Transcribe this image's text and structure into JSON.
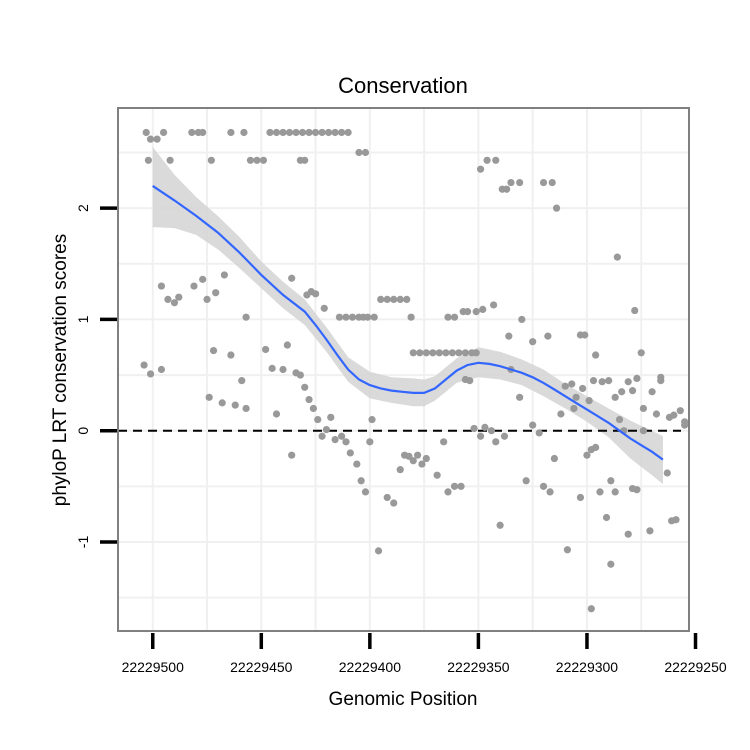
{
  "chart_data": {
    "type": "scatter",
    "title": "Conservation",
    "xlabel": "Genomic Position",
    "ylabel": "phyloP LRT conservation scores",
    "x_reversed": true,
    "xlim": [
      22229516,
      22229253
    ],
    "ylim": [
      -1.8,
      2.9
    ],
    "x_ticks": [
      {
        "value": 22229500,
        "label": "22229500"
      },
      {
        "value": 22229450,
        "label": "22229450"
      },
      {
        "value": 22229400,
        "label": "22229400"
      },
      {
        "value": 22229350,
        "label": "22229350"
      },
      {
        "value": 22229300,
        "label": "22229300"
      },
      {
        "value": 22229250,
        "label": "22229250"
      }
    ],
    "y_ticks": [
      {
        "value": -1,
        "label": "-1"
      },
      {
        "value": 0,
        "label": "0"
      },
      {
        "value": 1,
        "label": "1"
      },
      {
        "value": 2,
        "label": "2"
      }
    ],
    "grid": true,
    "reference_line": {
      "y": 0,
      "style": "dashed"
    },
    "colors": {
      "points": "#999999",
      "smooth": "#3366ff",
      "band": "#d3d3d3",
      "grid": "#f0f0f0",
      "border": "#808080"
    },
    "points": [
      [
        22229503,
        2.68
      ],
      [
        22229495,
        2.68
      ],
      [
        22229482,
        2.68
      ],
      [
        22229479,
        2.68
      ],
      [
        22229477,
        2.68
      ],
      [
        22229464,
        2.68
      ],
      [
        22229458,
        2.68
      ],
      [
        22229446,
        2.68
      ],
      [
        22229443,
        2.68
      ],
      [
        22229440,
        2.68
      ],
      [
        22229437,
        2.68
      ],
      [
        22229434,
        2.68
      ],
      [
        22229431,
        2.68
      ],
      [
        22229428,
        2.68
      ],
      [
        22229425,
        2.68
      ],
      [
        22229422,
        2.68
      ],
      [
        22229419,
        2.68
      ],
      [
        22229416,
        2.68
      ],
      [
        22229413,
        2.68
      ],
      [
        22229410,
        2.68
      ],
      [
        22229501,
        2.62
      ],
      [
        22229498,
        2.62
      ],
      [
        22229502,
        2.43
      ],
      [
        22229492,
        2.43
      ],
      [
        22229473,
        2.43
      ],
      [
        22229455,
        2.43
      ],
      [
        22229452,
        2.43
      ],
      [
        22229449,
        2.43
      ],
      [
        22229432,
        2.43
      ],
      [
        22229430,
        2.43
      ],
      [
        22229405,
        2.5
      ],
      [
        22229402,
        2.5
      ],
      [
        22229349,
        2.35
      ],
      [
        22229346,
        2.43
      ],
      [
        22229342,
        2.43
      ],
      [
        22229339,
        2.17
      ],
      [
        22229337,
        2.17
      ],
      [
        22229335,
        2.23
      ],
      [
        22229331,
        2.23
      ],
      [
        22229320,
        2.23
      ],
      [
        22229316,
        2.23
      ],
      [
        22229314,
        2.0
      ],
      [
        22229496,
        1.3
      ],
      [
        22229493,
        1.18
      ],
      [
        22229490,
        1.15
      ],
      [
        22229488,
        1.2
      ],
      [
        22229481,
        1.3
      ],
      [
        22229477,
        1.36
      ],
      [
        22229475,
        1.18
      ],
      [
        22229471,
        1.24
      ],
      [
        22229467,
        1.4
      ],
      [
        22229457,
        1.02
      ],
      [
        22229436,
        1.37
      ],
      [
        22229429,
        1.22
      ],
      [
        22229427,
        1.25
      ],
      [
        22229425,
        1.23
      ],
      [
        22229421,
        1.1
      ],
      [
        22229414,
        1.02
      ],
      [
        22229411,
        1.02
      ],
      [
        22229408,
        1.02
      ],
      [
        22229405,
        1.02
      ],
      [
        22229403,
        1.02
      ],
      [
        22229401,
        1.02
      ],
      [
        22229398,
        1.02
      ],
      [
        22229395,
        1.18
      ],
      [
        22229392,
        1.18
      ],
      [
        22229389,
        1.18
      ],
      [
        22229386,
        1.18
      ],
      [
        22229383,
        1.18
      ],
      [
        22229381,
        1.02
      ],
      [
        22229380,
        0.7
      ],
      [
        22229377,
        0.7
      ],
      [
        22229374,
        0.7
      ],
      [
        22229371,
        0.7
      ],
      [
        22229368,
        0.7
      ],
      [
        22229365,
        0.7
      ],
      [
        22229362,
        0.7
      ],
      [
        22229359,
        0.7
      ],
      [
        22229356,
        0.7
      ],
      [
        22229353,
        0.7
      ],
      [
        22229351,
        0.7
      ],
      [
        22229364,
        1.02
      ],
      [
        22229361,
        1.02
      ],
      [
        22229357,
        1.07
      ],
      [
        22229355,
        1.07
      ],
      [
        22229351,
        1.07
      ],
      [
        22229348,
        1.09
      ],
      [
        22229343,
        1.13
      ],
      [
        22229336,
        0.85
      ],
      [
        22229330,
        1.0
      ],
      [
        22229325,
        0.8
      ],
      [
        22229318,
        0.85
      ],
      [
        22229303,
        0.86
      ],
      [
        22229301,
        0.86
      ],
      [
        22229296,
        0.68
      ],
      [
        22229286,
        1.56
      ],
      [
        22229278,
        1.08
      ],
      [
        22229275,
        0.7
      ],
      [
        22229504,
        0.59
      ],
      [
        22229501,
        0.51
      ],
      [
        22229496,
        0.55
      ],
      [
        22229474,
        0.3
      ],
      [
        22229472,
        0.72
      ],
      [
        22229468,
        0.25
      ],
      [
        22229464,
        0.68
      ],
      [
        22229462,
        0.23
      ],
      [
        22229459,
        0.45
      ],
      [
        22229457,
        0.2
      ],
      [
        22229448,
        0.73
      ],
      [
        22229445,
        0.56
      ],
      [
        22229443,
        0.15
      ],
      [
        22229440,
        0.55
      ],
      [
        22229438,
        0.77
      ],
      [
        22229436,
        -0.22
      ],
      [
        22229434,
        0.52
      ],
      [
        22229432,
        0.5
      ],
      [
        22229430,
        0.39
      ],
      [
        22229428,
        0.28
      ],
      [
        22229426,
        0.2
      ],
      [
        22229424,
        0.1
      ],
      [
        22229422,
        -0.05
      ],
      [
        22229420,
        0.01
      ],
      [
        22229418,
        0.12
      ],
      [
        22229416,
        -0.08
      ],
      [
        22229413,
        -0.05
      ],
      [
        22229411,
        -0.1
      ],
      [
        22229409,
        -0.2
      ],
      [
        22229406,
        -0.3
      ],
      [
        22229404,
        -0.45
      ],
      [
        22229402,
        -0.55
      ],
      [
        22229400,
        -0.1
      ],
      [
        22229399,
        0.1
      ],
      [
        22229396,
        -1.08
      ],
      [
        22229392,
        -0.6
      ],
      [
        22229389,
        -0.65
      ],
      [
        22229386,
        -0.35
      ],
      [
        22229384,
        -0.22
      ],
      [
        22229382,
        -0.23
      ],
      [
        22229380,
        -0.27
      ],
      [
        22229378,
        -0.22
      ],
      [
        22229376,
        -0.3
      ],
      [
        22229374,
        -0.25
      ],
      [
        22229369,
        -0.4
      ],
      [
        22229366,
        -0.1
      ],
      [
        22229364,
        -0.55
      ],
      [
        22229361,
        -0.5
      ],
      [
        22229358,
        -0.5
      ],
      [
        22229356,
        0.46
      ],
      [
        22229354,
        0.45
      ],
      [
        22229352,
        0.02
      ],
      [
        22229349,
        -0.05
      ],
      [
        22229347,
        0.03
      ],
      [
        22229344,
        0.0
      ],
      [
        22229342,
        -0.1
      ],
      [
        22229340,
        -0.85
      ],
      [
        22229338,
        -0.05
      ],
      [
        22229335,
        0.55
      ],
      [
        22229331,
        0.3
      ],
      [
        22229328,
        -0.45
      ],
      [
        22229325,
        0.05
      ],
      [
        22229322,
        -0.02
      ],
      [
        22229320,
        -0.5
      ],
      [
        22229317,
        -0.55
      ],
      [
        22229315,
        -0.25
      ],
      [
        22229312,
        0.15
      ],
      [
        22229309,
        -1.07
      ],
      [
        22229306,
        0.2
      ],
      [
        22229303,
        -0.6
      ],
      [
        22229300,
        -0.22
      ],
      [
        22229298,
        -0.17
      ],
      [
        22229296,
        -0.15
      ],
      [
        22229294,
        -0.55
      ],
      [
        22229291,
        -0.78
      ],
      [
        22229289,
        -0.45
      ],
      [
        22229287,
        -0.55
      ],
      [
        22229285,
        0.1
      ],
      [
        22229283,
        0.0
      ],
      [
        22229281,
        -0.93
      ],
      [
        22229279,
        -0.52
      ],
      [
        22229277,
        -0.53
      ],
      [
        22229274,
        0.0
      ],
      [
        22229271,
        -0.9
      ],
      [
        22229268,
        0.15
      ],
      [
        22229266,
        0.48
      ],
      [
        22229263,
        -0.38
      ],
      [
        22229261,
        -0.81
      ],
      [
        22229259,
        -0.8
      ],
      [
        22229257,
        0.18
      ],
      [
        22229255,
        0.08
      ],
      [
        22229310,
        0.4
      ],
      [
        22229307,
        0.42
      ],
      [
        22229305,
        0.3
      ],
      [
        22229302,
        0.38
      ],
      [
        22229299,
        0.27
      ],
      [
        22229297,
        0.45
      ],
      [
        22229293,
        0.44
      ],
      [
        22229290,
        0.45
      ],
      [
        22229287,
        0.3
      ],
      [
        22229284,
        0.35
      ],
      [
        22229281,
        0.44
      ],
      [
        22229279,
        0.36
      ],
      [
        22229277,
        0.47
      ],
      [
        22229274,
        0.2
      ],
      [
        22229270,
        0.35
      ],
      [
        22229266,
        0.45
      ],
      [
        22229262,
        0.12
      ],
      [
        22229260,
        0.14
      ],
      [
        22229255,
        0.05
      ],
      [
        22229298,
        -1.6
      ],
      [
        22229289,
        -1.2
      ]
    ],
    "smooth": [
      [
        22229500,
        2.2
      ],
      [
        22229490,
        2.07
      ],
      [
        22229480,
        1.93
      ],
      [
        22229470,
        1.78
      ],
      [
        22229460,
        1.6
      ],
      [
        22229450,
        1.4
      ],
      [
        22229440,
        1.22
      ],
      [
        22229430,
        1.07
      ],
      [
        22229425,
        0.95
      ],
      [
        22229420,
        0.82
      ],
      [
        22229415,
        0.68
      ],
      [
        22229410,
        0.55
      ],
      [
        22229405,
        0.46
      ],
      [
        22229400,
        0.41
      ],
      [
        22229395,
        0.38
      ],
      [
        22229390,
        0.36
      ],
      [
        22229385,
        0.35
      ],
      [
        22229380,
        0.34
      ],
      [
        22229375,
        0.34
      ],
      [
        22229370,
        0.38
      ],
      [
        22229365,
        0.46
      ],
      [
        22229360,
        0.54
      ],
      [
        22229355,
        0.59
      ],
      [
        22229350,
        0.61
      ],
      [
        22229345,
        0.6
      ],
      [
        22229340,
        0.58
      ],
      [
        22229335,
        0.55
      ],
      [
        22229330,
        0.52
      ],
      [
        22229325,
        0.48
      ],
      [
        22229320,
        0.43
      ],
      [
        22229315,
        0.37
      ],
      [
        22229310,
        0.31
      ],
      [
        22229305,
        0.25
      ],
      [
        22229300,
        0.19
      ],
      [
        22229295,
        0.13
      ],
      [
        22229290,
        0.07
      ],
      [
        22229285,
        0.0
      ],
      [
        22229280,
        -0.07
      ],
      [
        22229275,
        -0.13
      ],
      [
        22229270,
        -0.19
      ],
      [
        22229265,
        -0.26
      ]
    ],
    "band_upper": [
      [
        22229500,
        2.55
      ],
      [
        22229490,
        2.3
      ],
      [
        22229480,
        2.1
      ],
      [
        22229470,
        1.93
      ],
      [
        22229460,
        1.74
      ],
      [
        22229450,
        1.52
      ],
      [
        22229440,
        1.34
      ],
      [
        22229430,
        1.18
      ],
      [
        22229420,
        0.93
      ],
      [
        22229410,
        0.66
      ],
      [
        22229400,
        0.53
      ],
      [
        22229390,
        0.48
      ],
      [
        22229380,
        0.47
      ],
      [
        22229375,
        0.46
      ],
      [
        22229370,
        0.49
      ],
      [
        22229360,
        0.65
      ],
      [
        22229350,
        0.75
      ],
      [
        22229340,
        0.71
      ],
      [
        22229330,
        0.64
      ],
      [
        22229320,
        0.55
      ],
      [
        22229310,
        0.42
      ],
      [
        22229300,
        0.31
      ],
      [
        22229290,
        0.2
      ],
      [
        22229280,
        0.09
      ],
      [
        22229270,
        0.0
      ],
      [
        22229265,
        -0.05
      ]
    ],
    "band_lower": [
      [
        22229500,
        1.83
      ],
      [
        22229490,
        1.82
      ],
      [
        22229480,
        1.76
      ],
      [
        22229470,
        1.63
      ],
      [
        22229460,
        1.46
      ],
      [
        22229450,
        1.28
      ],
      [
        22229440,
        1.1
      ],
      [
        22229430,
        0.95
      ],
      [
        22229420,
        0.71
      ],
      [
        22229410,
        0.44
      ],
      [
        22229400,
        0.29
      ],
      [
        22229390,
        0.25
      ],
      [
        22229380,
        0.22
      ],
      [
        22229375,
        0.22
      ],
      [
        22229370,
        0.27
      ],
      [
        22229360,
        0.43
      ],
      [
        22229350,
        0.48
      ],
      [
        22229340,
        0.46
      ],
      [
        22229330,
        0.41
      ],
      [
        22229320,
        0.31
      ],
      [
        22229310,
        0.2
      ],
      [
        22229300,
        0.08
      ],
      [
        22229290,
        -0.06
      ],
      [
        22229280,
        -0.25
      ],
      [
        22229270,
        -0.4
      ],
      [
        22229265,
        -0.48
      ]
    ]
  }
}
